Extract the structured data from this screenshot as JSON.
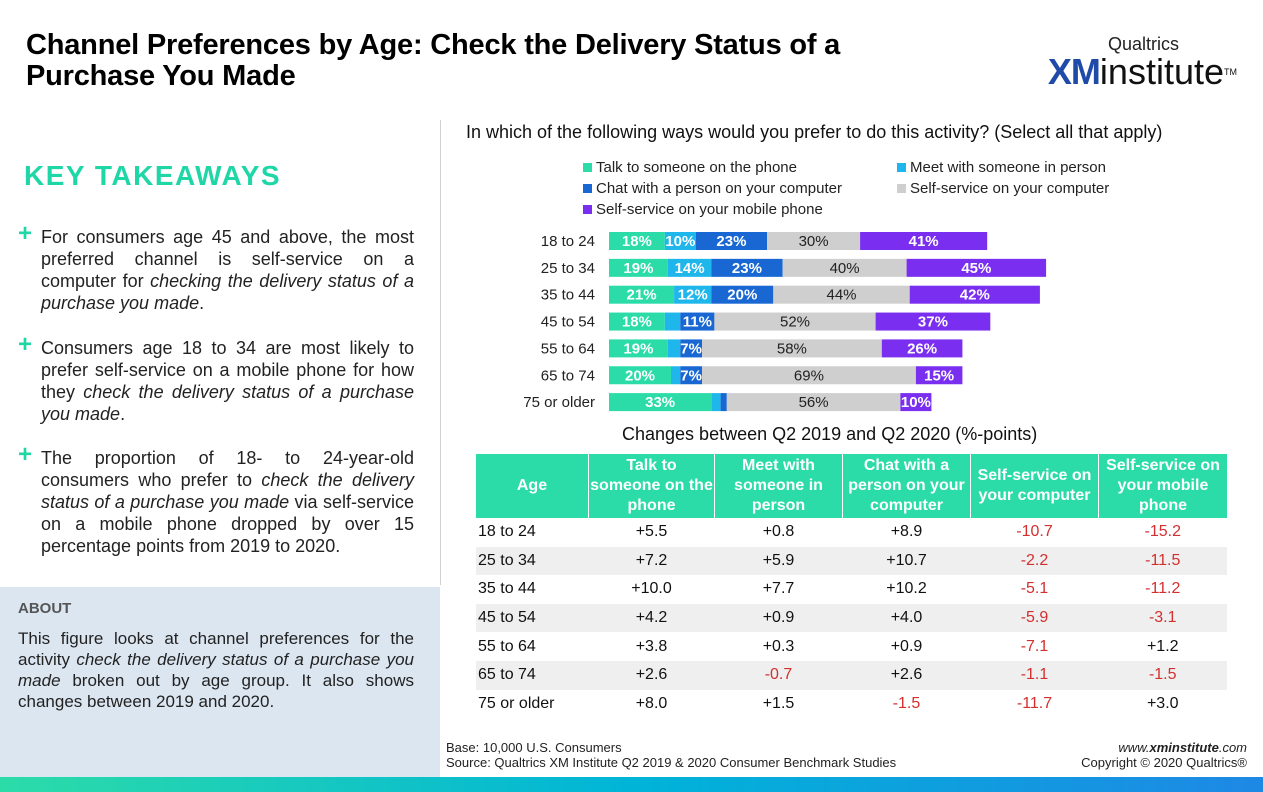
{
  "title": "Channel Preferences by Age: Check the Delivery Status of a Purchase You Made",
  "logo": {
    "line1": "Qualtrics",
    "xm": "XM",
    "word": "institute",
    "tm": "TM"
  },
  "takeaways": {
    "heading": "KEY TAKEAWAYS",
    "items": [
      {
        "pre": "For consumers age 45 and above, the most preferred channel is self-service on a computer for ",
        "em": "checking the delivery status of a purchase you made",
        "post": "."
      },
      {
        "pre": "Consumers age 18 to 34 are most likely to prefer self-service on a mobile phone for how they  ",
        "em": "check the delivery status of a purchase you made",
        "post": "."
      },
      {
        "pre": "The proportion of 18- to 24-year-old consumers who prefer to ",
        "em": "check the delivery status of a purchase you made",
        "post": " via self-service on a mobile phone dropped by over 15 percentage points from 2019 to 2020."
      }
    ]
  },
  "about": {
    "heading": "ABOUT",
    "pre": "This figure looks at channel preferences for the activity ",
    "em": "check the delivery status of a purchase you made",
    "post": " broken out by age group. It also shows changes between 2019 and 2020."
  },
  "question": "In which of the following ways would you prefer to do this activity? (Select all that apply)",
  "colors": {
    "phone": "#2cdca8",
    "person": "#1fb6ec",
    "chat": "#1967d2",
    "computer": "#cfcfcf",
    "mobile": "#7a2ff0",
    "negative": "#d32f2f",
    "header": "#2cdca8"
  },
  "chart_data": {
    "type": "bar",
    "orientation": "horizontal",
    "stacked": true,
    "legend_position": "top",
    "categories": [
      "18 to 24",
      "25 to 34",
      "35 to 44",
      "45 to 54",
      "55 to 64",
      "65 to 74",
      "75 or older"
    ],
    "series": [
      {
        "name": "Talk to someone on the phone",
        "color": "#2cdca8",
        "values": [
          18,
          19,
          21,
          18,
          19,
          20,
          33
        ],
        "labels": [
          "18%",
          "19%",
          "21%",
          "18%",
          "19%",
          "20%",
          "33%"
        ]
      },
      {
        "name": "Meet with someone in person",
        "color": "#1fb6ec",
        "values": [
          10,
          14,
          12,
          5,
          4,
          3,
          3
        ],
        "labels": [
          "10%",
          "14%",
          "12%",
          "",
          "",
          "",
          ""
        ]
      },
      {
        "name": "Chat with a person on your computer",
        "color": "#1967d2",
        "values": [
          23,
          23,
          20,
          11,
          7,
          7,
          2
        ],
        "labels": [
          "23%",
          "23%",
          "20%",
          "11%",
          "7%",
          "7%",
          ""
        ]
      },
      {
        "name": "Self-service on your computer",
        "color": "#cfcfcf",
        "values": [
          30,
          40,
          44,
          52,
          58,
          69,
          56
        ],
        "labels": [
          "30%",
          "40%",
          "44%",
          "52%",
          "58%",
          "69%",
          "56%"
        ]
      },
      {
        "name": "Self-service on your mobile phone",
        "color": "#7a2ff0",
        "values": [
          41,
          45,
          42,
          37,
          26,
          15,
          10
        ],
        "labels": [
          "41%",
          "45%",
          "42%",
          "37%",
          "26%",
          "15%",
          "10%"
        ]
      }
    ]
  },
  "changes": {
    "title": "Changes between Q2 2019 and Q2 2020 (%-points)",
    "headers": [
      "Age",
      "Talk to someone on the phone",
      "Meet with someone in person",
      "Chat with a person on your computer",
      "Self-service on your computer",
      "Self-service on your mobile phone"
    ],
    "rows": [
      [
        "18 to 24",
        "+5.5",
        "+0.8",
        "+8.9",
        "-10.7",
        "-15.2"
      ],
      [
        "25 to 34",
        "+7.2",
        "+5.9",
        "+10.7",
        "-2.2",
        "-11.5"
      ],
      [
        "35 to 44",
        "+10.0",
        "+7.7",
        "+10.2",
        "-5.1",
        "-11.2"
      ],
      [
        "45 to 54",
        "+4.2",
        "+0.9",
        "+4.0",
        "-5.9",
        "-3.1"
      ],
      [
        "55 to 64",
        "+3.8",
        "+0.3",
        "+0.9",
        "-7.1",
        "+1.2"
      ],
      [
        "65 to 74",
        "+2.6",
        "-0.7",
        "+2.6",
        "-1.1",
        "-1.5"
      ],
      [
        "75 or older",
        "+8.0",
        "+1.5",
        "-1.5",
        "-11.7",
        "+3.0"
      ]
    ]
  },
  "footer": {
    "base": "Base: 10,000 U.S. Consumers",
    "source": "Source: Qualtrics XM Institute Q2 2019 & 2020 Consumer Benchmark Studies",
    "site_pre": "www.",
    "site_bold": "xminstitute",
    "site_post": ".com",
    "copyright": "Copyright © 2020 Qualtrics®"
  }
}
